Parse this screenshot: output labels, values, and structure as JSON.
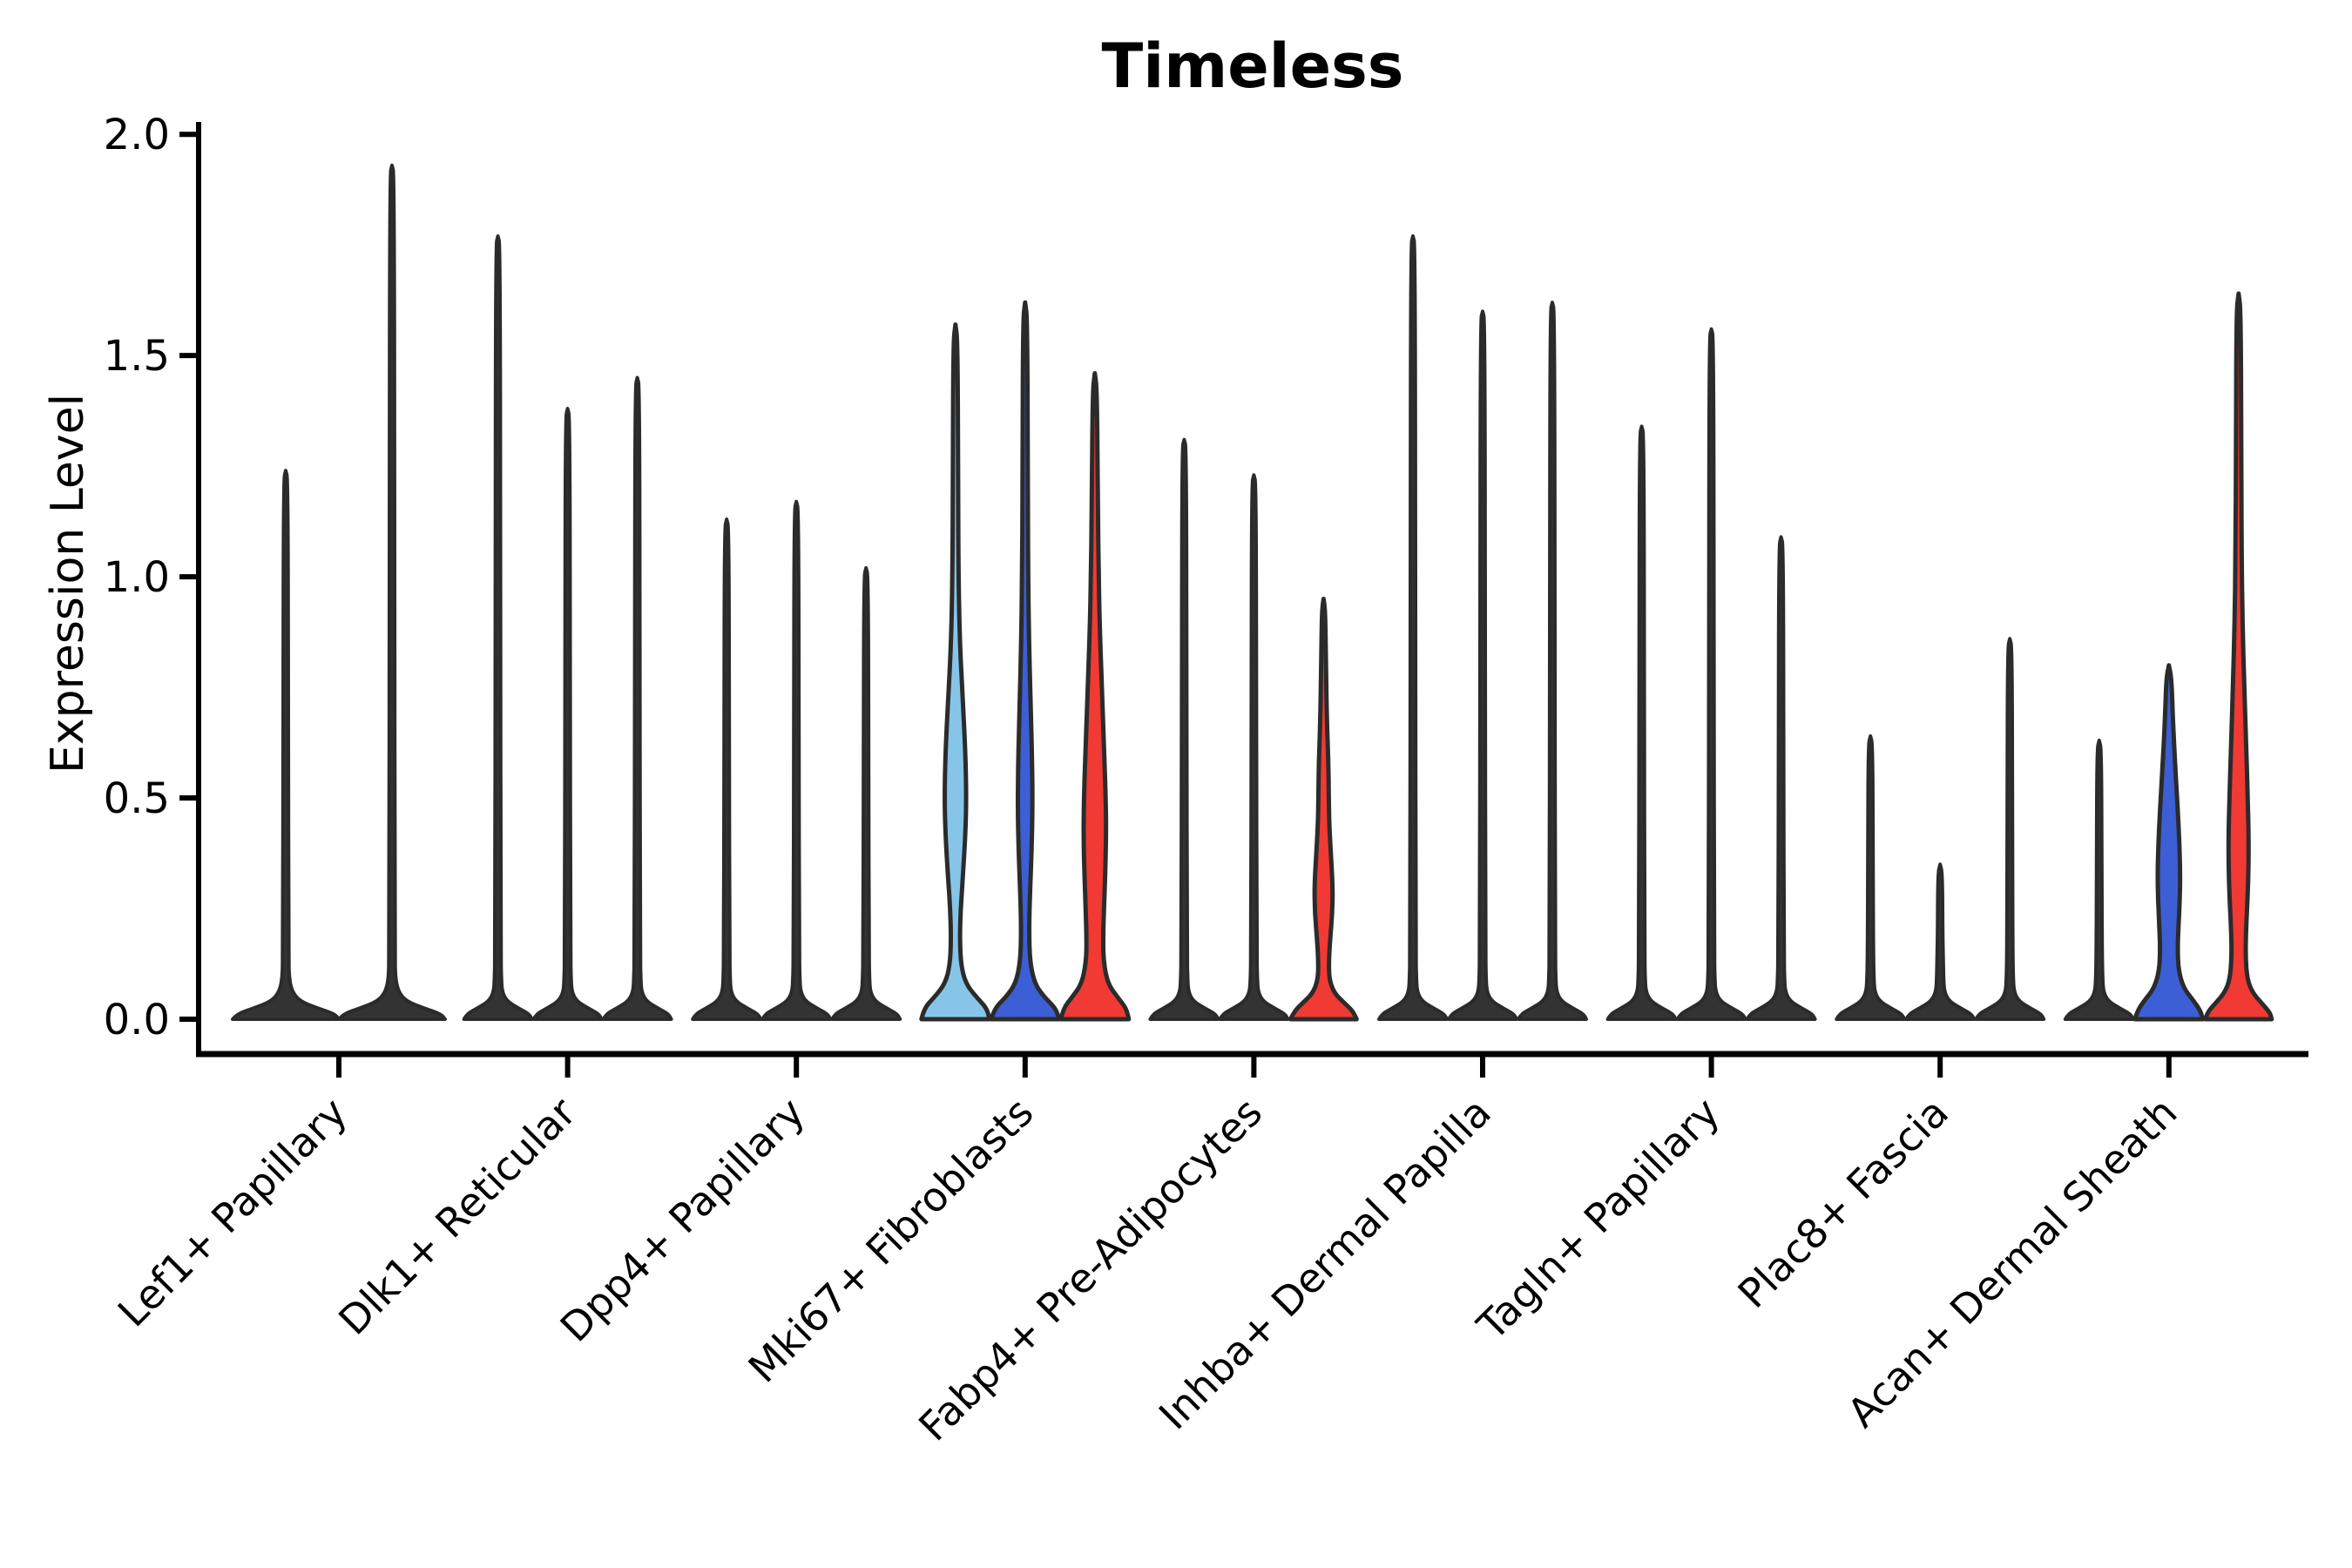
{
  "figure": {
    "title": "Timeless",
    "y_axis_label": "Expression Level"
  },
  "chart_data": {
    "type": "violin",
    "title": "Timeless",
    "ylabel": "Expression Level",
    "xlabel": "",
    "ylim": [
      0,
      2.0
    ],
    "yticks": [
      {
        "label": "0.0",
        "value": 0.0
      },
      {
        "label": "0.5",
        "value": 0.5
      },
      {
        "label": "1.0",
        "value": 1.0
      },
      {
        "label": "1.5",
        "value": 1.5
      },
      {
        "label": "2.0",
        "value": 2.0
      }
    ],
    "grid": false,
    "legend": "none",
    "palette": {
      "thin": "#333333",
      "lightblue": "#87C5E8",
      "blue": "#3C5FD5",
      "red": "#F03A33",
      "outline": "#2B2B2B",
      "axis": "#000000"
    },
    "categories": [
      "Lef1+ Papillary",
      "Dlk1+ Reticular",
      "Dpp4+ Papillary",
      "Mki67+ Fibroblasts",
      "Fabp4+ Pre-Adipocytes",
      "Inhba+ Dermal Papilla",
      "Tagln+ Papillary",
      "Plac8+ Fascia",
      "Acan+ Dermal Sheath"
    ],
    "groups": [
      {
        "category": "Lef1+ Papillary",
        "violins": [
          {
            "color": "thin",
            "max": 1.24
          },
          {
            "color": "thin",
            "max": 1.93
          }
        ]
      },
      {
        "category": "Dlk1+ Reticular",
        "violins": [
          {
            "color": "thin",
            "max": 1.77
          },
          {
            "color": "thin",
            "max": 1.38
          },
          {
            "color": "thin",
            "max": 1.45
          }
        ]
      },
      {
        "category": "Dpp4+ Papillary",
        "violins": [
          {
            "color": "thin",
            "max": 1.13
          },
          {
            "color": "thin",
            "max": 1.17
          },
          {
            "color": "thin",
            "max": 1.02
          }
        ]
      },
      {
        "category": "Mki67+ Fibroblasts",
        "violins": [
          {
            "color": "lightblue",
            "max": 1.57,
            "profile": [
              [
                0,
                39
              ],
              [
                0.025,
                36
              ],
              [
                0.05,
                24
              ],
              [
                0.08,
                12
              ],
              [
                0.12,
                6.5
              ],
              [
                0.18,
                5
              ],
              [
                0.25,
                6
              ],
              [
                0.32,
                8.5
              ],
              [
                0.42,
                11.5
              ],
              [
                0.5,
                12.5
              ],
              [
                0.6,
                11.5
              ],
              [
                0.72,
                8.5
              ],
              [
                0.85,
                5
              ],
              [
                1.0,
                3.5
              ],
              [
                1.2,
                3
              ],
              [
                1.53,
                2.5
              ],
              [
                1.57,
                0
              ]
            ]
          },
          {
            "color": "blue",
            "max": 1.62,
            "profile": [
              [
                0,
                39
              ],
              [
                0.025,
                35
              ],
              [
                0.05,
                22
              ],
              [
                0.08,
                11
              ],
              [
                0.13,
                5.5
              ],
              [
                0.2,
                4.5
              ],
              [
                0.28,
                5.5
              ],
              [
                0.38,
                7.5
              ],
              [
                0.48,
                8.5
              ],
              [
                0.58,
                8
              ],
              [
                0.7,
                6.5
              ],
              [
                0.85,
                4.5
              ],
              [
                1.0,
                3.5
              ],
              [
                1.2,
                3
              ],
              [
                1.58,
                2.5
              ],
              [
                1.62,
                0
              ]
            ]
          },
          {
            "color": "red",
            "max": 1.46,
            "profile": [
              [
                0,
                39
              ],
              [
                0.025,
                36
              ],
              [
                0.05,
                26
              ],
              [
                0.08,
                15
              ],
              [
                0.13,
                10
              ],
              [
                0.18,
                9.5
              ],
              [
                0.25,
                10.5
              ],
              [
                0.33,
                12
              ],
              [
                0.42,
                13
              ],
              [
                0.5,
                12.5
              ],
              [
                0.62,
                10.5
              ],
              [
                0.78,
                7.5
              ],
              [
                0.9,
                5.5
              ],
              [
                1.0,
                4.5
              ],
              [
                1.15,
                3.5
              ],
              [
                1.42,
                2.5
              ],
              [
                1.46,
                0
              ]
            ]
          }
        ]
      },
      {
        "category": "Fabp4+ Pre-Adipocytes",
        "violins": [
          {
            "color": "thin",
            "max": 1.31
          },
          {
            "color": "thin",
            "max": 1.23
          },
          {
            "color": "red",
            "max": 0.95,
            "profile": [
              [
                0,
                38
              ],
              [
                0.02,
                33
              ],
              [
                0.04,
                22
              ],
              [
                0.06,
                12
              ],
              [
                0.09,
                6.5
              ],
              [
                0.13,
                6
              ],
              [
                0.18,
                7.5
              ],
              [
                0.24,
                10
              ],
              [
                0.3,
                10.5
              ],
              [
                0.37,
                8.5
              ],
              [
                0.44,
                6.5
              ],
              [
                0.5,
                6
              ],
              [
                0.58,
                5.5
              ],
              [
                0.66,
                4
              ],
              [
                0.78,
                2.8
              ],
              [
                0.92,
                2
              ],
              [
                0.95,
                0
              ]
            ]
          }
        ]
      },
      {
        "category": "Inhba+ Dermal Papilla",
        "violins": [
          {
            "color": "thin",
            "max": 1.77
          },
          {
            "color": "thin",
            "max": 1.6
          },
          {
            "color": "thin",
            "max": 1.62
          }
        ]
      },
      {
        "category": "Tagln+ Papillary",
        "violins": [
          {
            "color": "thin",
            "max": 1.34
          },
          {
            "color": "thin",
            "max": 1.56
          },
          {
            "color": "thin",
            "max": 1.09
          }
        ]
      },
      {
        "category": "Plac8+ Fascia",
        "violins": [
          {
            "color": "thin",
            "max": 0.64
          },
          {
            "color": "thin",
            "max": 0.35
          },
          {
            "color": "thin",
            "max": 0.86
          }
        ]
      },
      {
        "category": "Acan+ Dermal Sheath",
        "violins": [
          {
            "color": "thin",
            "max": 0.63
          },
          {
            "color": "blue",
            "max": 0.8,
            "profile": [
              [
                0,
                39
              ],
              [
                0.02,
                36
              ],
              [
                0.045,
                27
              ],
              [
                0.07,
                17
              ],
              [
                0.11,
                11
              ],
              [
                0.16,
                10
              ],
              [
                0.21,
                11
              ],
              [
                0.27,
                12.5
              ],
              [
                0.33,
                13
              ],
              [
                0.4,
                12
              ],
              [
                0.48,
                10
              ],
              [
                0.58,
                7
              ],
              [
                0.68,
                4.5
              ],
              [
                0.77,
                3
              ],
              [
                0.8,
                0
              ]
            ]
          },
          {
            "color": "red",
            "max": 1.64,
            "profile": [
              [
                0,
                38
              ],
              [
                0.015,
                36
              ],
              [
                0.035,
                27
              ],
              [
                0.06,
                16
              ],
              [
                0.09,
                10
              ],
              [
                0.14,
                8
              ],
              [
                0.2,
                8.5
              ],
              [
                0.28,
                10.5
              ],
              [
                0.35,
                11.5
              ],
              [
                0.42,
                11.5
              ],
              [
                0.5,
                10.5
              ],
              [
                0.6,
                9
              ],
              [
                0.75,
                6.5
              ],
              [
                0.9,
                4.5
              ],
              [
                1.05,
                3.5
              ],
              [
                1.3,
                3
              ],
              [
                1.6,
                2.5
              ],
              [
                1.64,
                0
              ]
            ]
          }
        ]
      }
    ]
  }
}
